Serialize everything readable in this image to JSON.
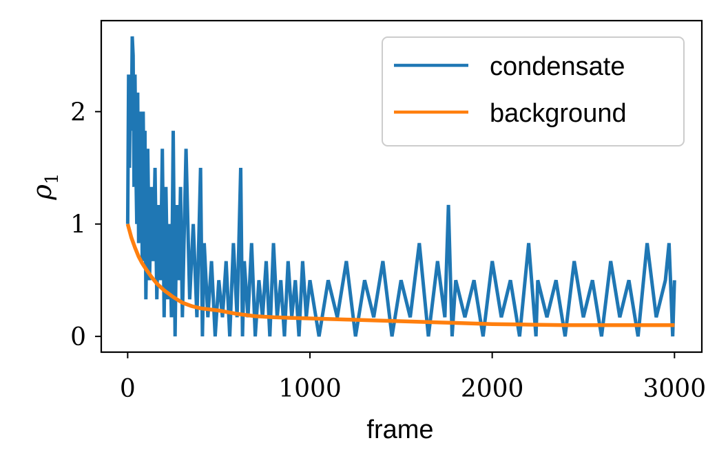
{
  "chart_data": {
    "type": "line",
    "xlabel": "frame",
    "ylabel": "ρ",
    "ylabel_sub": "1",
    "xlim": [
      -145,
      3150
    ],
    "ylim": [
      -0.14,
      2.81
    ],
    "xticks": [
      0,
      1000,
      2000,
      3000
    ],
    "xtick_labels": [
      "0",
      "1000",
      "2000",
      "3000"
    ],
    "yticks": [
      0,
      1,
      2
    ],
    "ytick_labels": [
      "0",
      "1",
      "2"
    ],
    "grid": false,
    "legend_position": "top-right",
    "series": [
      {
        "name": "condensate",
        "color": "#1f77b4",
        "x": [
          0,
          5,
          10,
          15,
          20,
          25,
          30,
          35,
          40,
          45,
          50,
          55,
          60,
          65,
          70,
          75,
          80,
          85,
          90,
          95,
          100,
          110,
          120,
          130,
          140,
          150,
          160,
          170,
          180,
          190,
          200,
          210,
          220,
          230,
          240,
          250,
          260,
          270,
          280,
          290,
          300,
          320,
          340,
          360,
          380,
          400,
          410,
          420,
          440,
          460,
          480,
          500,
          520,
          540,
          560,
          580,
          600,
          620,
          630,
          640,
          660,
          680,
          700,
          720,
          740,
          760,
          780,
          800,
          820,
          840,
          860,
          880,
          900,
          920,
          940,
          960,
          980,
          1000,
          1050,
          1100,
          1150,
          1200,
          1250,
          1300,
          1350,
          1400,
          1450,
          1500,
          1550,
          1600,
          1650,
          1700,
          1740,
          1760,
          1780,
          1800,
          1850,
          1900,
          1950,
          2000,
          2050,
          2100,
          2150,
          2200,
          2240,
          2250,
          2300,
          2350,
          2400,
          2450,
          2500,
          2550,
          2600,
          2650,
          2700,
          2750,
          2800,
          2850,
          2900,
          2950,
          2970,
          2990,
          3000
        ],
        "values": [
          1.0,
          2.33,
          1.5,
          2.33,
          1.83,
          2.67,
          2.5,
          1.33,
          2.33,
          1.5,
          1.0,
          2.17,
          0.83,
          2.0,
          1.33,
          2.0,
          0.67,
          2.0,
          1.17,
          1.83,
          0.33,
          1.67,
          0.5,
          1.33,
          0.67,
          1.5,
          0.33,
          1.17,
          0.5,
          1.67,
          0.17,
          1.33,
          0.33,
          1.0,
          0.17,
          1.83,
          0.0,
          1.17,
          0.5,
          1.33,
          0.17,
          1.67,
          0.33,
          1.0,
          0.17,
          1.5,
          0.0,
          0.83,
          0.17,
          0.67,
          0.0,
          0.5,
          0.17,
          0.67,
          0.0,
          0.83,
          0.17,
          1.5,
          0.0,
          0.67,
          0.17,
          0.83,
          0.0,
          0.5,
          0.17,
          0.67,
          0.0,
          0.83,
          0.17,
          0.5,
          0.0,
          0.67,
          0.17,
          0.5,
          0.0,
          0.67,
          0.17,
          0.5,
          0.0,
          0.5,
          0.17,
          0.67,
          0.0,
          0.5,
          0.17,
          0.67,
          0.0,
          0.5,
          0.17,
          0.83,
          0.0,
          0.67,
          0.17,
          1.17,
          0.0,
          0.5,
          0.17,
          0.5,
          0.0,
          0.67,
          0.17,
          0.5,
          0.0,
          0.83,
          0.0,
          0.5,
          0.17,
          0.5,
          0.0,
          0.67,
          0.17,
          0.5,
          0.0,
          0.67,
          0.17,
          0.5,
          0.0,
          0.83,
          0.17,
          0.5,
          0.83,
          0.0,
          0.5
        ]
      },
      {
        "name": "background",
        "color": "#ff7f0e",
        "x": [
          0,
          20,
          40,
          60,
          80,
          100,
          130,
          160,
          200,
          250,
          300,
          350,
          400,
          450,
          500,
          600,
          700,
          800,
          900,
          1000,
          1200,
          1400,
          1600,
          1800,
          2000,
          2200,
          2400,
          2600,
          2800,
          3000
        ],
        "values": [
          1.0,
          0.88,
          0.79,
          0.71,
          0.65,
          0.6,
          0.53,
          0.47,
          0.41,
          0.35,
          0.3,
          0.27,
          0.25,
          0.24,
          0.23,
          0.2,
          0.18,
          0.17,
          0.165,
          0.16,
          0.15,
          0.14,
          0.13,
          0.12,
          0.11,
          0.105,
          0.1,
          0.1,
          0.1,
          0.1
        ]
      }
    ]
  }
}
